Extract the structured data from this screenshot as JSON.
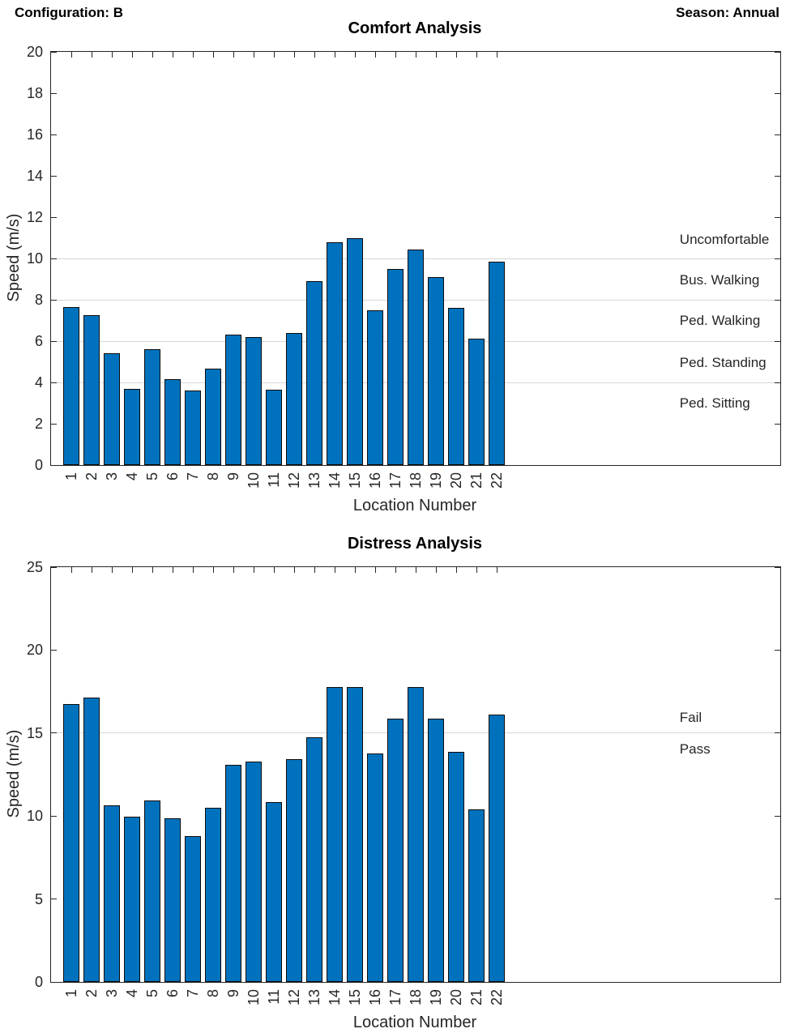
{
  "header": {
    "left": "Configuration: B",
    "right": "Season: Annual"
  },
  "style_colors": {
    "bar_fill": "#0072BD",
    "bar_edge": "#0a0a0a",
    "grid": "#d6d6d6",
    "axis": "#262626"
  },
  "chart_data": [
    {
      "type": "bar",
      "title": "Comfort Analysis",
      "xlabel": "Location Number",
      "ylabel": "Speed (m/s)",
      "categories": [
        "1",
        "2",
        "3",
        "4",
        "5",
        "6",
        "7",
        "8",
        "9",
        "10",
        "11",
        "12",
        "13",
        "14",
        "15",
        "16",
        "17",
        "18",
        "19",
        "20",
        "21",
        "22"
      ],
      "values": [
        7.65,
        7.25,
        5.4,
        3.7,
        5.6,
        4.15,
        3.6,
        4.65,
        6.3,
        6.2,
        3.65,
        6.4,
        8.9,
        10.8,
        11.0,
        7.5,
        9.5,
        10.45,
        9.1,
        7.6,
        6.1,
        9.85
      ],
      "ylim": [
        0,
        20
      ],
      "ytick_step": 2,
      "xlim": [
        0,
        36
      ],
      "bar_width": 0.8,
      "grid_on": "horizontal-partial",
      "grid_values": [
        4,
        6,
        8,
        10
      ],
      "zone_labels": [
        {
          "text": "Uncomfortable",
          "y": 10.9
        },
        {
          "text": "Bus. Walking",
          "y": 8.95
        },
        {
          "text": "Ped. Walking",
          "y": 7.0
        },
        {
          "text": "Ped. Standing",
          "y": 4.95
        },
        {
          "text": "Ped. Sitting",
          "y": 3.0
        }
      ],
      "zone_label_x_fraction": 0.862
    },
    {
      "type": "bar",
      "title": "Distress Analysis",
      "xlabel": "Location Number",
      "ylabel": "Speed (m/s)",
      "categories": [
        "1",
        "2",
        "3",
        "4",
        "5",
        "6",
        "7",
        "8",
        "9",
        "10",
        "11",
        "12",
        "13",
        "14",
        "15",
        "16",
        "17",
        "18",
        "19",
        "20",
        "21",
        "22"
      ],
      "values": [
        16.75,
        17.15,
        10.65,
        9.95,
        10.95,
        9.85,
        8.8,
        10.5,
        13.1,
        13.3,
        10.85,
        13.45,
        14.75,
        17.75,
        17.75,
        13.75,
        15.85,
        17.75,
        15.85,
        13.85,
        10.4,
        16.1
      ],
      "ylim": [
        0,
        25
      ],
      "ytick_step": 5,
      "xlim": [
        0,
        36
      ],
      "bar_width": 0.8,
      "grid_on": "horizontal-partial",
      "grid_values": [
        15
      ],
      "zone_labels": [
        {
          "text": "Fail",
          "y": 15.9
        },
        {
          "text": "Pass",
          "y": 14.0
        }
      ],
      "zone_label_x_fraction": 0.862
    }
  ]
}
